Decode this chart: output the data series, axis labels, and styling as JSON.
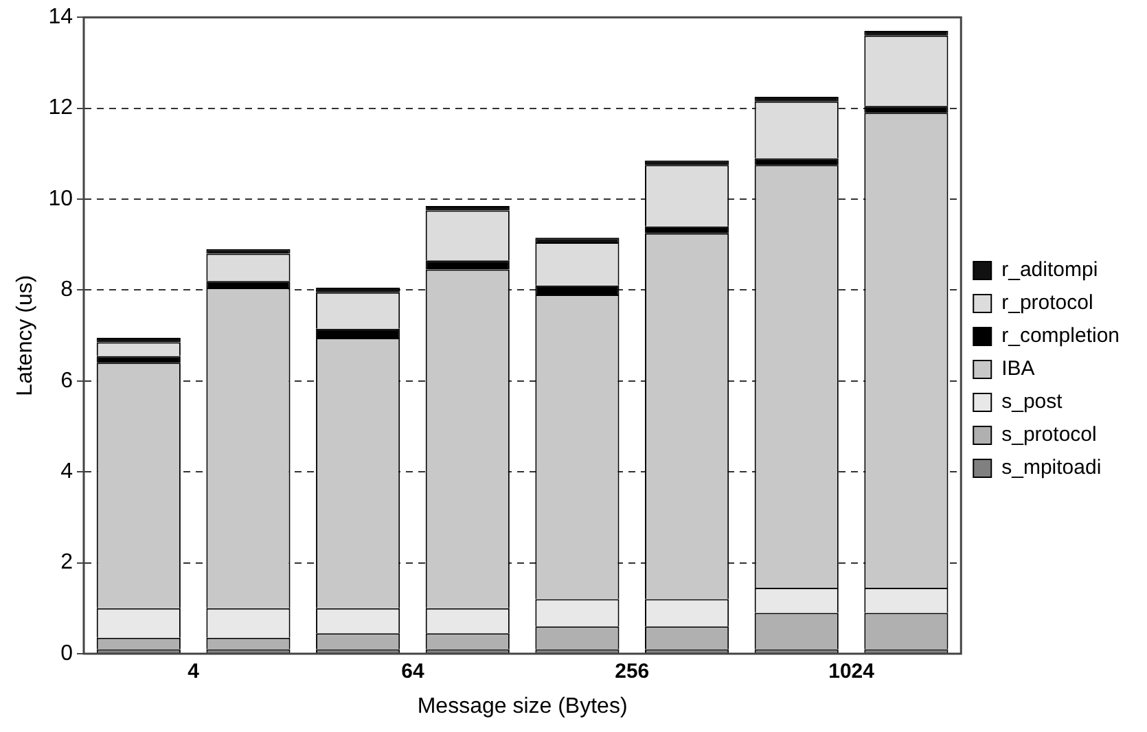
{
  "chart_data": {
    "type": "bar",
    "stacked": true,
    "xlabel": "Message size (Bytes)",
    "ylabel": "Latency (us)",
    "categories": [
      "4",
      null,
      "64",
      null,
      "256",
      null,
      "1024",
      null
    ],
    "ylim": [
      0,
      14
    ],
    "yticks": [
      0,
      2,
      4,
      6,
      8,
      10,
      12,
      14
    ],
    "grid": "y",
    "legend": "right",
    "series": [
      {
        "name": "s_mpitoadi",
        "color": "#808080",
        "values": [
          0.1,
          0.1,
          0.1,
          0.1,
          0.1,
          0.1,
          0.1,
          0.1
        ]
      },
      {
        "name": "s_protocol",
        "color": "#b0b0b0",
        "values": [
          0.25,
          0.25,
          0.35,
          0.35,
          0.5,
          0.5,
          0.8,
          0.8
        ]
      },
      {
        "name": "s_post",
        "color": "#e8e8e8",
        "values": [
          0.65,
          0.65,
          0.55,
          0.55,
          0.6,
          0.6,
          0.55,
          0.55
        ]
      },
      {
        "name": "IBA",
        "color": "#c8c8c8",
        "values": [
          5.4,
          7.05,
          5.95,
          7.45,
          6.7,
          8.05,
          9.3,
          10.45
        ]
      },
      {
        "name": "r_completion",
        "color": "#000000",
        "values": [
          0.15,
          0.15,
          0.2,
          0.2,
          0.2,
          0.15,
          0.15,
          0.15
        ]
      },
      {
        "name": "r_protocol",
        "color": "#dcdcdc",
        "values": [
          0.3,
          0.6,
          0.8,
          1.1,
          0.95,
          1.35,
          1.25,
          1.55
        ]
      },
      {
        "name": "r_aditompi",
        "color": "#111111",
        "values": [
          0.1,
          0.1,
          0.1,
          0.1,
          0.1,
          0.1,
          0.1,
          0.1
        ]
      }
    ]
  }
}
